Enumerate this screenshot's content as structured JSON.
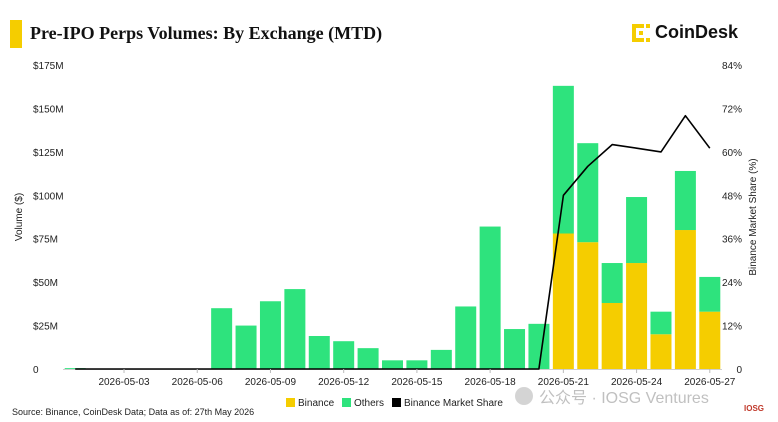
{
  "header": {
    "title": "Pre-IPO Perps Volumes: By Exchange (MTD)",
    "logo_text": "CoinDesk",
    "accent_color": "#f5cd00"
  },
  "footer": {
    "source": "Source: Binance, CoinDesk Data; Data as of: 27th May 2026",
    "watermark": "公众号 · IOSG Ventures",
    "watermark_logo": "IOSG"
  },
  "chart_data": {
    "type": "bar",
    "stacked": true,
    "categories": [
      "2026-05-01",
      "2026-05-02",
      "2026-05-03",
      "2026-05-04",
      "2026-05-05",
      "2026-05-06",
      "2026-05-07",
      "2026-05-08",
      "2026-05-09",
      "2026-05-10",
      "2026-05-11",
      "2026-05-12",
      "2026-05-13",
      "2026-05-14",
      "2026-05-15",
      "2026-05-16",
      "2026-05-17",
      "2026-05-18",
      "2026-05-19",
      "2026-05-20",
      "2026-05-21",
      "2026-05-22",
      "2026-05-23",
      "2026-05-24",
      "2026-05-25",
      "2026-05-26",
      "2026-05-27"
    ],
    "x_tick_labels": [
      "2026-05-03",
      "2026-05-06",
      "2026-05-09",
      "2026-05-12",
      "2026-05-15",
      "2026-05-18",
      "2026-05-21",
      "2026-05-24",
      "2026-05-27"
    ],
    "series": [
      {
        "name": "Binance",
        "color": "#f5cd00",
        "values": [
          0,
          0,
          0,
          0,
          0,
          0,
          0,
          0,
          0,
          0,
          0,
          0,
          0,
          0,
          0,
          0,
          0,
          0,
          0,
          0,
          78,
          73,
          38,
          61,
          20,
          80,
          33
        ]
      },
      {
        "name": "Others",
        "color": "#2ee37d",
        "values": [
          0.5,
          0,
          0,
          0,
          0,
          0,
          35,
          25,
          39,
          46,
          19,
          16,
          12,
          5,
          5,
          11,
          36,
          82,
          23,
          26,
          85,
          57,
          23,
          38,
          13,
          34,
          20
        ]
      }
    ],
    "line_series": {
      "name": "Binance Market Share",
      "color": "#000000",
      "axis": "right",
      "values": [
        0,
        0,
        0,
        0,
        0,
        0,
        0,
        0,
        0,
        0,
        0,
        0,
        0,
        0,
        0,
        0,
        0,
        0,
        0,
        0,
        48,
        56,
        62,
        61,
        60,
        70,
        61
      ]
    },
    "ylabel": "Volume ($)",
    "ylabel_right": "Binance Market Share (%)",
    "ylim": [
      0,
      175
    ],
    "ylim_right": [
      0,
      84
    ],
    "y_ticks": [
      "0",
      "$25M",
      "$50M",
      "$75M",
      "$100M",
      "$125M",
      "$150M",
      "$175M"
    ],
    "y_ticks_right": [
      "0",
      "12%",
      "24%",
      "36%",
      "48%",
      "60%",
      "72%",
      "84%"
    ],
    "legend": [
      "Binance",
      "Others",
      "Binance Market Share"
    ],
    "legend_position": "bottom",
    "grid": false
  }
}
